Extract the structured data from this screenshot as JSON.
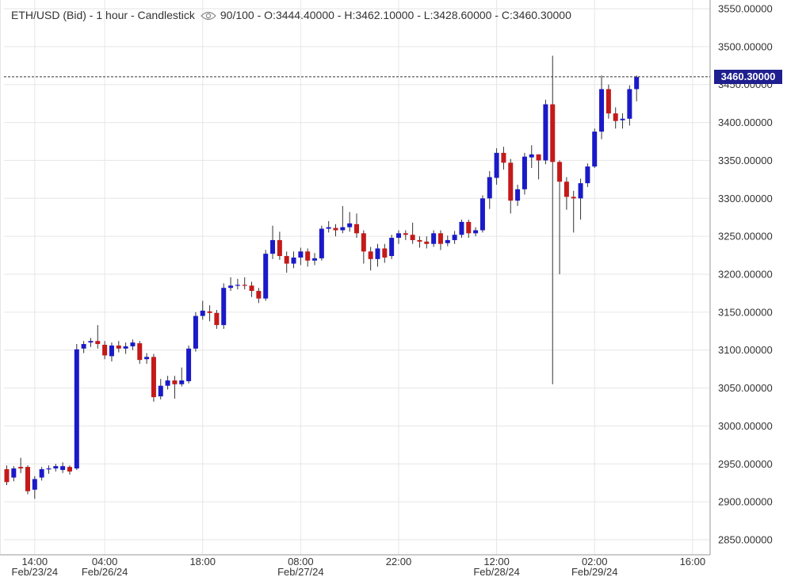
{
  "header": {
    "symbol": "ETH/USD (Bid)",
    "timeframe": "1 hour",
    "chart_style": "Candlestick",
    "visibility": "90/100",
    "open": "O:3444.40000",
    "high": "H:3462.10000",
    "low": "L:3428.60000",
    "close": "C:3460.30000",
    "eye_icon": "eye-icon"
  },
  "last_price_tag": "3460.30000",
  "colors": {
    "up": "#1a1ac8",
    "down": "#c41a1a",
    "grid": "#e6e6e6",
    "axis": "#999999",
    "tag": "#1f1f8f"
  },
  "chart_data": {
    "type": "candlestick",
    "title": "ETH/USD (Bid) - 1 hour - Candlestick",
    "ylim": [
      2840,
      3560
    ],
    "y_ticks": [
      "3550.00000",
      "3500.00000",
      "3450.00000",
      "3400.00000",
      "3350.00000",
      "3300.00000",
      "3250.00000",
      "3200.00000",
      "3150.00000",
      "3100.00000",
      "3050.00000",
      "3000.00000",
      "2950.00000",
      "2900.00000",
      "2850.00000"
    ],
    "x_ticks": [
      {
        "time": "14:00",
        "date": "Feb/23/24",
        "index": 4
      },
      {
        "time": "04:00",
        "date": "Feb/26/24",
        "index": 14
      },
      {
        "time": "18:00",
        "date": "",
        "index": 28
      },
      {
        "time": "08:00",
        "date": "Feb/27/24",
        "index": 42
      },
      {
        "time": "22:00",
        "date": "",
        "index": 56
      },
      {
        "time": "12:00",
        "date": "Feb/28/24",
        "index": 70
      },
      {
        "time": "02:00",
        "date": "Feb/29/24",
        "index": 84
      },
      {
        "time": "16:00",
        "date": "",
        "index": 98
      }
    ],
    "last_price": 3460.3,
    "candles": [
      [
        2943,
        2926,
        2948,
        2922
      ],
      [
        2932,
        2944,
        2947,
        2927
      ],
      [
        2946,
        2944,
        2958,
        2938
      ],
      [
        2946,
        2914,
        2948,
        2910
      ],
      [
        2916,
        2930,
        2934,
        2904
      ],
      [
        2932,
        2943,
        2946,
        2928
      ],
      [
        2943,
        2944,
        2948,
        2937
      ],
      [
        2944,
        2947,
        2950,
        2940
      ],
      [
        2942,
        2947,
        2952,
        2938
      ],
      [
        2946,
        2940,
        2948,
        2936
      ],
      [
        2944,
        3101,
        3108,
        2942
      ],
      [
        3102,
        3108,
        3112,
        3096
      ],
      [
        3110,
        3112,
        3116,
        3104
      ],
      [
        3112,
        3108,
        3133,
        3102
      ],
      [
        3107,
        3093,
        3112,
        3088
      ],
      [
        3092,
        3106,
        3110,
        3085
      ],
      [
        3106,
        3102,
        3112,
        3097
      ],
      [
        3102,
        3105,
        3110,
        3095
      ],
      [
        3105,
        3110,
        3114,
        3100
      ],
      [
        3109,
        3087,
        3112,
        3082
      ],
      [
        3088,
        3091,
        3096,
        3082
      ],
      [
        3091,
        3038,
        3095,
        3032
      ],
      [
        3039,
        3053,
        3062,
        3035
      ],
      [
        3053,
        3060,
        3066,
        3048
      ],
      [
        3060,
        3055,
        3066,
        3036
      ],
      [
        3055,
        3060,
        3077,
        3052
      ],
      [
        3059,
        3102,
        3106,
        3056
      ],
      [
        3102,
        3145,
        3150,
        3098
      ],
      [
        3145,
        3152,
        3165,
        3140
      ],
      [
        3151,
        3149,
        3159,
        3138
      ],
      [
        3149,
        3133,
        3153,
        3128
      ],
      [
        3133,
        3182,
        3188,
        3128
      ],
      [
        3182,
        3185,
        3196,
        3178
      ],
      [
        3185,
        3186,
        3194,
        3180
      ],
      [
        3186,
        3185,
        3196,
        3180
      ],
      [
        3185,
        3178,
        3190,
        3170
      ],
      [
        3178,
        3168,
        3182,
        3162
      ],
      [
        3168,
        3227,
        3232,
        3165
      ],
      [
        3227,
        3245,
        3264,
        3220
      ],
      [
        3245,
        3224,
        3256,
        3219
      ],
      [
        3224,
        3214,
        3230,
        3202
      ],
      [
        3214,
        3222,
        3230,
        3208
      ],
      [
        3222,
        3230,
        3235,
        3212
      ],
      [
        3230,
        3218,
        3234,
        3210
      ],
      [
        3218,
        3221,
        3228,
        3212
      ],
      [
        3221,
        3260,
        3264,
        3218
      ],
      [
        3260,
        3262,
        3270,
        3255
      ],
      [
        3261,
        3258,
        3266,
        3250
      ],
      [
        3258,
        3262,
        3290,
        3254
      ],
      [
        3262,
        3267,
        3282,
        3256
      ],
      [
        3266,
        3254,
        3280,
        3248
      ],
      [
        3254,
        3230,
        3258,
        3214
      ],
      [
        3230,
        3220,
        3236,
        3205
      ],
      [
        3220,
        3234,
        3240,
        3210
      ],
      [
        3234,
        3222,
        3240,
        3215
      ],
      [
        3224,
        3248,
        3252,
        3220
      ],
      [
        3248,
        3254,
        3258,
        3240
      ],
      [
        3254,
        3252,
        3258,
        3245
      ],
      [
        3252,
        3245,
        3268,
        3240
      ],
      [
        3245,
        3243,
        3250,
        3235
      ],
      [
        3243,
        3240,
        3250,
        3234
      ],
      [
        3240,
        3254,
        3258,
        3236
      ],
      [
        3254,
        3240,
        3258,
        3232
      ],
      [
        3241,
        3245,
        3251,
        3237
      ],
      [
        3245,
        3252,
        3257,
        3240
      ],
      [
        3252,
        3269,
        3272,
        3248
      ],
      [
        3269,
        3254,
        3272,
        3248
      ],
      [
        3254,
        3258,
        3262,
        3250
      ],
      [
        3258,
        3300,
        3304,
        3255
      ],
      [
        3300,
        3328,
        3336,
        3286
      ],
      [
        3327,
        3360,
        3366,
        3318
      ],
      [
        3360,
        3347,
        3368,
        3338
      ],
      [
        3347,
        3297,
        3352,
        3280
      ],
      [
        3297,
        3312,
        3318,
        3290
      ],
      [
        3312,
        3355,
        3360,
        3305
      ],
      [
        3354,
        3358,
        3370,
        3340
      ],
      [
        3358,
        3350,
        3358,
        3325
      ],
      [
        3350,
        3424,
        3430,
        3345
      ],
      [
        3424,
        3348,
        3488,
        3055
      ],
      [
        3348,
        3322,
        3350,
        3200
      ],
      [
        3322,
        3302,
        3328,
        3285
      ],
      [
        3302,
        3300,
        3310,
        3255
      ],
      [
        3300,
        3320,
        3326,
        3272
      ],
      [
        3320,
        3342,
        3346,
        3315
      ],
      [
        3342,
        3388,
        3392,
        3340
      ],
      [
        3388,
        3444,
        3462,
        3378
      ],
      [
        3444,
        3412,
        3450,
        3405
      ],
      [
        3412,
        3402,
        3420,
        3392
      ],
      [
        3403,
        3405,
        3412,
        3392
      ],
      [
        3405,
        3444,
        3449,
        3396
      ],
      [
        3444,
        3460,
        3462,
        3428
      ]
    ]
  }
}
